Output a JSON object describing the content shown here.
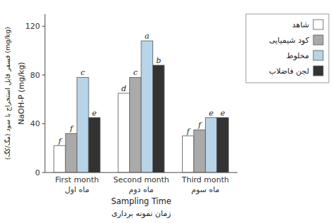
{
  "chart_data": {
    "type": "bar",
    "categories": [
      "First month",
      "Second month",
      "Third month"
    ],
    "category_annotations": [
      "ماه اول",
      "ماه دوم",
      "ماه سوم"
    ],
    "series": [
      {
        "name": "شاهد",
        "color": "#ffffff",
        "values": [
          22,
          65,
          30
        ],
        "annotations": [
          "f",
          "d",
          "f"
        ]
      },
      {
        "name": "کود شیمیایی",
        "color": "#aaaaaa",
        "values": [
          32,
          78,
          35
        ],
        "annotations": [
          "f",
          "c",
          "f"
        ]
      },
      {
        "name": "مخلوط",
        "color": "#b8d4e8",
        "values": [
          78,
          108,
          45
        ],
        "annotations": [
          "c",
          "a",
          "e"
        ]
      },
      {
        "name": "لجن فاضلاب",
        "color": "#333333",
        "values": [
          45,
          88,
          45
        ],
        "annotations": [
          "e",
          "b",
          "e"
        ]
      }
    ],
    "x_label": "Sampling Time",
    "x_label_fa": "زمان نمونه برداری",
    "y_label": "NaOH-P (mg/kg)",
    "y_label_fa": "(مگ/کگ) فسفر قابل استخراج با سود (mg/kg)",
    "ylim": [
      0,
      130
    ],
    "yticks": [
      0,
      40,
      80,
      120
    ],
    "grid": false,
    "legend": "right"
  }
}
